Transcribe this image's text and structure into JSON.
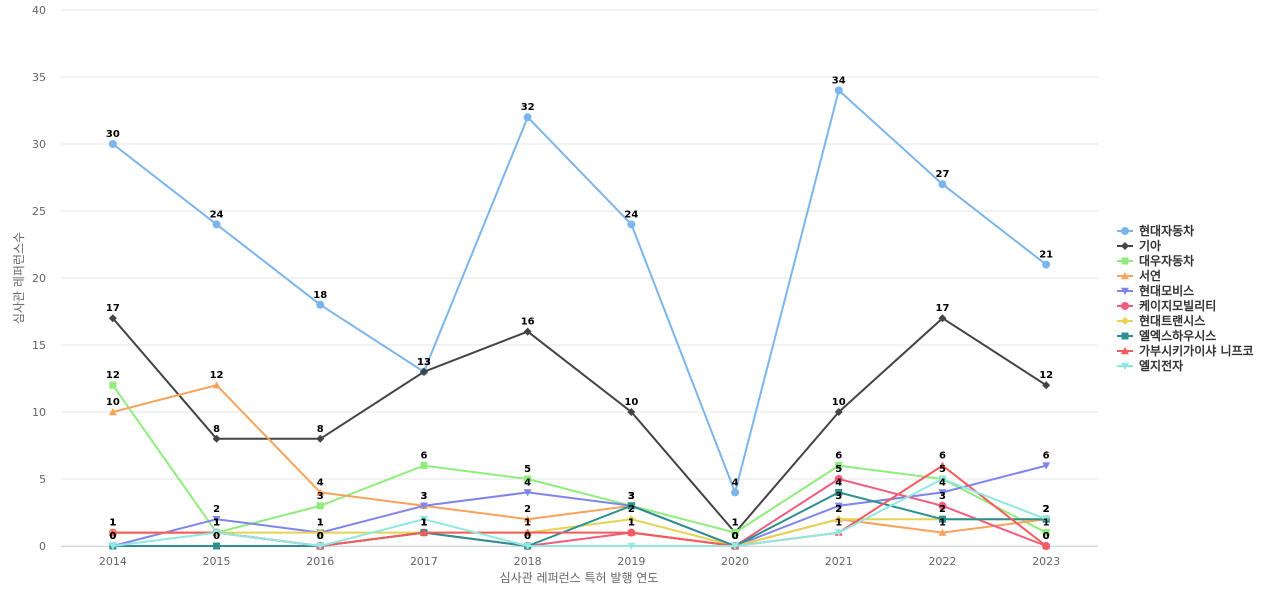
{
  "chart_data": {
    "type": "line",
    "title": "",
    "xlabel": "심사관 레퍼런스 특허 발행 연도",
    "ylabel": "심사관 레퍼런스수",
    "ylim": [
      0,
      40
    ],
    "yticks": [
      0,
      5,
      10,
      15,
      20,
      25,
      30,
      35,
      40
    ],
    "x": [
      "2014",
      "2015",
      "2016",
      "2017",
      "2018",
      "2019",
      "2020",
      "2021",
      "2022",
      "2023"
    ],
    "grid": true,
    "legend_position": "right",
    "series": [
      {
        "name": "현대자동차",
        "color": "#7cb5ec",
        "marker": "circle",
        "values": [
          30,
          24,
          18,
          13,
          32,
          24,
          4,
          34,
          27,
          21
        ],
        "labels": true
      },
      {
        "name": "기아",
        "color": "#434348",
        "marker": "diamond",
        "values": [
          17,
          8,
          8,
          13,
          16,
          10,
          1,
          10,
          17,
          12
        ],
        "labels": true
      },
      {
        "name": "대우자동차",
        "color": "#90ed7d",
        "marker": "square",
        "values": [
          12,
          1,
          3,
          6,
          5,
          3,
          1,
          6,
          5,
          1
        ],
        "labels": true
      },
      {
        "name": "서연",
        "color": "#f7a35c",
        "marker": "triangle",
        "values": [
          10,
          12,
          4,
          3,
          2,
          3,
          0,
          2,
          1,
          2
        ],
        "labels": true
      },
      {
        "name": "현대모비스",
        "color": "#8085e9",
        "marker": "triangle-down",
        "values": [
          0,
          2,
          1,
          3,
          4,
          3,
          0,
          3,
          4,
          6
        ],
        "labels": true
      },
      {
        "name": "케이지모빌리티",
        "color": "#f15c80",
        "marker": "circle",
        "values": [
          1,
          1,
          0,
          1,
          0,
          1,
          0,
          5,
          3,
          0
        ],
        "labels": true
      },
      {
        "name": "현대트랜시스",
        "color": "#e4d354",
        "marker": "diamond",
        "values": [
          1,
          1,
          1,
          1,
          1,
          2,
          0,
          2,
          2,
          2
        ],
        "labels": true
      },
      {
        "name": "엘엑스하우시스",
        "color": "#2b908f",
        "marker": "square",
        "values": [
          0,
          0,
          0,
          1,
          0,
          3,
          0,
          4,
          2,
          2
        ],
        "labels": true
      },
      {
        "name": "가부시키가이샤 니프코",
        "color": "#f45b5b",
        "marker": "triangle",
        "values": [
          1,
          1,
          0,
          1,
          1,
          1,
          0,
          1,
          6,
          0
        ],
        "labels": true
      },
      {
        "name": "엘지전자",
        "color": "#91e8e1",
        "marker": "triangle-down",
        "values": [
          0,
          1,
          0,
          2,
          0,
          0,
          0,
          1,
          5,
          2
        ],
        "labels": false
      }
    ]
  }
}
